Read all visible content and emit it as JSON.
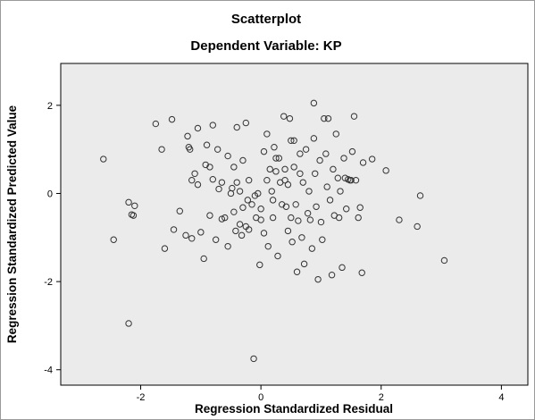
{
  "chart_data": {
    "type": "scatter",
    "title": "Scatterplot",
    "subtitle": "Dependent Variable: KP",
    "xlabel": "Regression Standardized Residual",
    "ylabel": "Regression Standardized Predicted Value",
    "xlim": [
      -3.33,
      4.44
    ],
    "ylim": [
      -4.35,
      2.95
    ],
    "xticks": [
      -2,
      0,
      2,
      4
    ],
    "yticks": [
      2,
      0,
      -2,
      -4
    ],
    "grid": false,
    "legend": "none",
    "plot_bg": "#ebebeb",
    "marker_stroke": "#333333",
    "points": [
      [
        -2.62,
        0.78
      ],
      [
        -2.45,
        -1.05
      ],
      [
        -2.2,
        -0.2
      ],
      [
        -2.15,
        -0.48
      ],
      [
        -2.12,
        -0.5
      ],
      [
        -2.1,
        -0.28
      ],
      [
        -2.2,
        -2.95
      ],
      [
        -1.75,
        1.58
      ],
      [
        -1.65,
        1.0
      ],
      [
        -1.6,
        -1.25
      ],
      [
        -1.48,
        1.68
      ],
      [
        -1.45,
        -0.82
      ],
      [
        -1.35,
        -0.4
      ],
      [
        -1.25,
        -0.95
      ],
      [
        -1.22,
        1.3
      ],
      [
        -1.2,
        1.05
      ],
      [
        -1.18,
        1.0
      ],
      [
        -1.15,
        0.3
      ],
      [
        -1.15,
        -1.02
      ],
      [
        -1.1,
        0.45
      ],
      [
        -1.05,
        1.48
      ],
      [
        -1.05,
        0.2
      ],
      [
        -1.0,
        -0.88
      ],
      [
        -0.95,
        -1.48
      ],
      [
        -0.92,
        0.65
      ],
      [
        -0.9,
        1.1
      ],
      [
        -0.85,
        0.6
      ],
      [
        -0.85,
        -0.5
      ],
      [
        -0.8,
        1.55
      ],
      [
        -0.8,
        0.32
      ],
      [
        -0.75,
        -1.05
      ],
      [
        -0.72,
        1.0
      ],
      [
        -0.7,
        0.1
      ],
      [
        -0.65,
        0.25
      ],
      [
        -0.65,
        -0.58
      ],
      [
        -0.6,
        -0.55
      ],
      [
        -0.55,
        0.85
      ],
      [
        -0.55,
        -1.2
      ],
      [
        -0.5,
        0.0
      ],
      [
        -0.48,
        0.12
      ],
      [
        -0.45,
        0.6
      ],
      [
        -0.45,
        -0.42
      ],
      [
        -0.42,
        -0.85
      ],
      [
        -0.4,
        1.5
      ],
      [
        -0.4,
        0.25
      ],
      [
        -0.35,
        0.05
      ],
      [
        -0.35,
        -0.7
      ],
      [
        -0.32,
        -0.95
      ],
      [
        -0.3,
        0.75
      ],
      [
        -0.3,
        -0.32
      ],
      [
        -0.25,
        1.6
      ],
      [
        -0.25,
        -0.75
      ],
      [
        -0.22,
        -0.15
      ],
      [
        -0.2,
        0.3
      ],
      [
        -0.2,
        -0.82
      ],
      [
        -0.15,
        -0.25
      ],
      [
        -0.12,
        -3.75
      ],
      [
        -0.1,
        -0.05
      ],
      [
        -0.08,
        -0.55
      ],
      [
        -0.05,
        0.0
      ],
      [
        -0.02,
        -1.62
      ],
      [
        0.0,
        -0.6
      ],
      [
        0.0,
        -0.35
      ],
      [
        0.05,
        0.95
      ],
      [
        0.05,
        -0.9
      ],
      [
        0.1,
        1.35
      ],
      [
        0.1,
        0.3
      ],
      [
        0.12,
        -1.2
      ],
      [
        0.15,
        0.55
      ],
      [
        0.18,
        0.05
      ],
      [
        0.2,
        -0.15
      ],
      [
        0.2,
        -0.55
      ],
      [
        0.22,
        1.05
      ],
      [
        0.25,
        0.8
      ],
      [
        0.25,
        0.5
      ],
      [
        0.28,
        -1.42
      ],
      [
        0.3,
        0.8
      ],
      [
        0.32,
        0.25
      ],
      [
        0.35,
        -0.25
      ],
      [
        0.38,
        1.75
      ],
      [
        0.4,
        0.55
      ],
      [
        0.4,
        0.3
      ],
      [
        0.42,
        -0.3
      ],
      [
        0.45,
        0.2
      ],
      [
        0.45,
        -0.85
      ],
      [
        0.48,
        1.7
      ],
      [
        0.5,
        1.2
      ],
      [
        0.5,
        -0.55
      ],
      [
        0.52,
        -1.1
      ],
      [
        0.55,
        1.2
      ],
      [
        0.55,
        0.6
      ],
      [
        0.58,
        -0.25
      ],
      [
        0.6,
        -1.78
      ],
      [
        0.62,
        -0.62
      ],
      [
        0.65,
        0.9
      ],
      [
        0.65,
        0.45
      ],
      [
        0.68,
        -1.0
      ],
      [
        0.7,
        0.25
      ],
      [
        0.72,
        -1.6
      ],
      [
        0.75,
        1.0
      ],
      [
        0.78,
        -0.45
      ],
      [
        0.8,
        0.05
      ],
      [
        0.82,
        -0.6
      ],
      [
        0.85,
        -1.25
      ],
      [
        0.88,
        2.05
      ],
      [
        0.88,
        1.25
      ],
      [
        0.9,
        0.45
      ],
      [
        0.92,
        -0.3
      ],
      [
        0.95,
        -1.95
      ],
      [
        0.98,
        0.75
      ],
      [
        1.0,
        -0.65
      ],
      [
        1.02,
        -1.05
      ],
      [
        1.05,
        1.7
      ],
      [
        1.08,
        0.9
      ],
      [
        1.1,
        0.15
      ],
      [
        1.12,
        1.7
      ],
      [
        1.15,
        -0.15
      ],
      [
        1.18,
        -1.85
      ],
      [
        1.2,
        0.55
      ],
      [
        1.22,
        -0.5
      ],
      [
        1.25,
        1.35
      ],
      [
        1.28,
        0.35
      ],
      [
        1.3,
        -0.55
      ],
      [
        1.32,
        0.05
      ],
      [
        1.35,
        -1.68
      ],
      [
        1.38,
        0.8
      ],
      [
        1.4,
        0.35
      ],
      [
        1.42,
        -0.35
      ],
      [
        1.45,
        0.32
      ],
      [
        1.48,
        0.3
      ],
      [
        1.5,
        0.3
      ],
      [
        1.52,
        0.95
      ],
      [
        1.55,
        1.75
      ],
      [
        1.58,
        0.3
      ],
      [
        1.62,
        -0.55
      ],
      [
        1.65,
        -0.32
      ],
      [
        1.68,
        -1.8
      ],
      [
        1.7,
        0.7
      ],
      [
        1.85,
        0.78
      ],
      [
        2.08,
        0.52
      ],
      [
        2.3,
        -0.6
      ],
      [
        2.6,
        -0.75
      ],
      [
        2.65,
        -0.05
      ],
      [
        3.05,
        -1.52
      ]
    ]
  }
}
